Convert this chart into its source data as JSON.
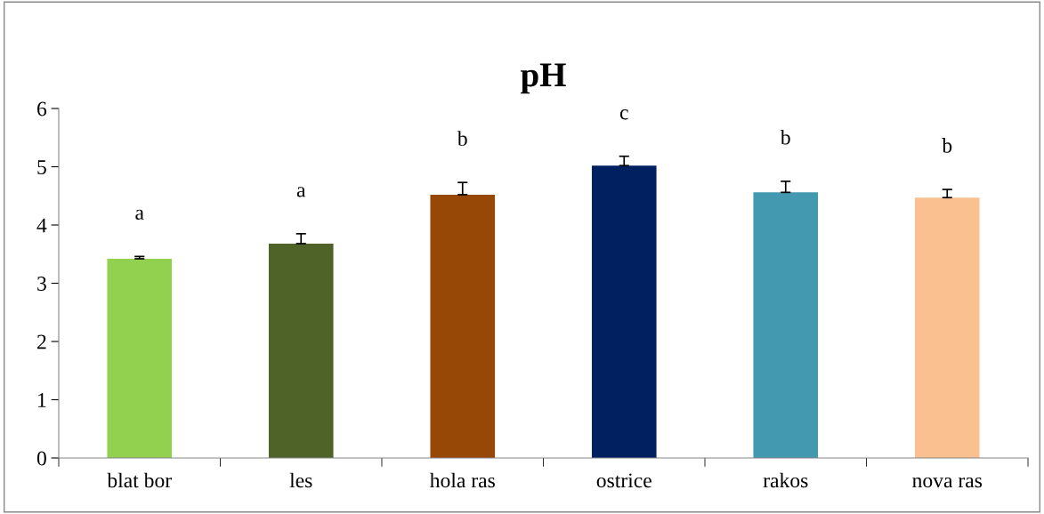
{
  "chart_data": {
    "type": "bar",
    "title": "pH",
    "categories": [
      "blat bor",
      "les",
      "hola ras",
      "ostrice",
      "rakos",
      "nova ras"
    ],
    "values": [
      3.42,
      3.68,
      4.52,
      5.02,
      4.56,
      4.47
    ],
    "colors": [
      "#92d050",
      "#4f6228",
      "#974706",
      "#002060",
      "#4399b0",
      "#fac090"
    ],
    "errors": [
      [
        3.42,
        3.46
      ],
      [
        3.68,
        3.85
      ],
      [
        4.52,
        4.73
      ],
      [
        5.02,
        5.18
      ],
      [
        4.56,
        4.75
      ],
      [
        4.47,
        4.61
      ]
    ],
    "ylim": [
      0,
      6
    ],
    "yticks": [
      0,
      1,
      2,
      3,
      4,
      5,
      6
    ],
    "grid": false,
    "legend": false,
    "annotations": [
      "a",
      "a",
      "b",
      "c",
      "b",
      "b"
    ]
  }
}
